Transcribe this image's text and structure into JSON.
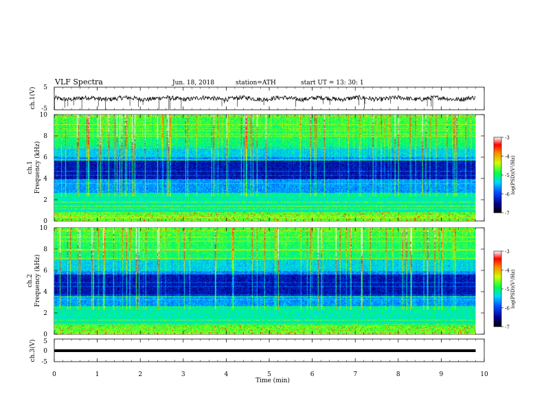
{
  "header": {
    "title": "VLF  Spectra",
    "date": "Jun. 18, 2018",
    "station": "station=ATH",
    "start": "start  UT  =   13: 30: 1"
  },
  "chart_data": [
    {
      "type": "line",
      "name": "ch1-waveform",
      "ylabel": "ch.1(V)",
      "ylim": [
        -5,
        5
      ],
      "yticks": [
        "5",
        "-5"
      ],
      "approx_level": 0,
      "approx_amplitude": 1
    },
    {
      "type": "heatmap",
      "name": "ch1-spectrogram",
      "ylabel": "ch.1\nFrequency (kHz)",
      "ylim": [
        0,
        10
      ],
      "yticks": [
        "0",
        "2",
        "4",
        "6",
        "8",
        "10"
      ],
      "colorbar": {
        "label": "log(PSD)(V²/Hz)",
        "range": [
          -7,
          -3
        ],
        "ticks": [
          "-3",
          "-4",
          "-5",
          "-6",
          "-7"
        ]
      }
    },
    {
      "type": "heatmap",
      "name": "ch2-spectrogram",
      "ylabel": "ch.2\nFrequency (kHz)",
      "ylim": [
        0,
        10
      ],
      "yticks": [
        "0",
        "2",
        "4",
        "6",
        "8",
        "10"
      ],
      "colorbar": {
        "label": "log(PSD)(V²/Hz)",
        "range": [
          -7,
          -3
        ],
        "ticks": [
          "-3",
          "-4",
          "-5",
          "-6",
          "-7"
        ]
      }
    },
    {
      "type": "line",
      "name": "ch3-waveform",
      "ylabel": "ch.3(V)",
      "ylim": [
        -5,
        5
      ],
      "yticks": [
        "5",
        "0",
        "-5"
      ],
      "approx_level": 0
    }
  ],
  "x_axis": {
    "label": "Time  (min)",
    "xlim": [
      0,
      10
    ],
    "ticks": [
      "0",
      "1",
      "2",
      "3",
      "4",
      "5",
      "6",
      "7",
      "8",
      "9",
      "10"
    ],
    "data_end": 9.8
  },
  "colors": {
    "spectrum_low": "#000060",
    "spectrum_mid": "#00ff00",
    "spectrum_high": "#ff0000"
  }
}
